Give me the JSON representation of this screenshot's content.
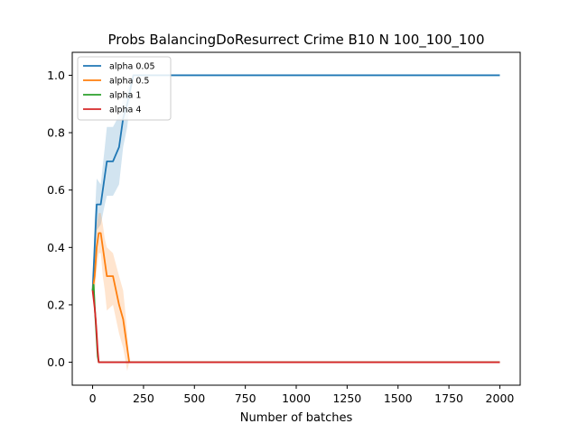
{
  "chart_data": {
    "type": "line",
    "title": "Probs BalancingDoResurrect Crime B10 N 100_100_100",
    "xlabel": "Number of batches",
    "ylabel": "",
    "xlim": [
      -100,
      2100
    ],
    "ylim": [
      -0.08,
      1.08
    ],
    "xticks": [
      0,
      250,
      500,
      750,
      1000,
      1250,
      1500,
      1750,
      2000
    ],
    "yticks": [
      0.0,
      0.2,
      0.4,
      0.6,
      0.8,
      1.0
    ],
    "grid": false,
    "legend_position": "top-left",
    "series": [
      {
        "name": "alpha 0.05",
        "color": "#1f77b4",
        "x": [
          0,
          10,
          20,
          40,
          60,
          70,
          100,
          130,
          150,
          170,
          200,
          250,
          500,
          1000,
          1500,
          2000
        ],
        "y": [
          0.25,
          0.4,
          0.55,
          0.55,
          0.65,
          0.7,
          0.7,
          0.75,
          0.85,
          0.9,
          1.0,
          1.0,
          1.0,
          1.0,
          1.0,
          1.0
        ],
        "band_upper": [
          0.27,
          0.5,
          0.64,
          0.62,
          0.75,
          0.82,
          0.82,
          0.86,
          0.92,
          0.95,
          1.0,
          1.0,
          1.0,
          1.0,
          1.0,
          1.0
        ],
        "band_lower": [
          0.23,
          0.3,
          0.46,
          0.48,
          0.55,
          0.58,
          0.58,
          0.62,
          0.75,
          0.82,
          1.0,
          1.0,
          1.0,
          1.0,
          1.0,
          1.0
        ]
      },
      {
        "name": "alpha 0.5",
        "color": "#ff7f0e",
        "x": [
          0,
          10,
          20,
          30,
          40,
          50,
          60,
          70,
          100,
          130,
          150,
          160,
          170,
          180,
          200,
          500,
          1000,
          1500,
          2000
        ],
        "y": [
          0.25,
          0.3,
          0.4,
          0.45,
          0.45,
          0.4,
          0.35,
          0.3,
          0.3,
          0.2,
          0.15,
          0.1,
          0.05,
          0.0,
          0.0,
          0.0,
          0.0,
          0.0,
          0.0
        ],
        "band_upper": [
          0.27,
          0.36,
          0.48,
          0.52,
          0.52,
          0.48,
          0.43,
          0.4,
          0.38,
          0.3,
          0.25,
          0.18,
          0.1,
          0.0,
          0.0,
          0.0,
          0.0,
          0.0,
          0.0
        ],
        "band_lower": [
          0.23,
          0.24,
          0.32,
          0.38,
          0.38,
          0.3,
          0.25,
          0.18,
          0.2,
          0.1,
          0.05,
          0.01,
          -0.03,
          0.0,
          0.0,
          0.0,
          0.0,
          0.0,
          0.0
        ]
      },
      {
        "name": "alpha 1",
        "color": "#2ca02c",
        "x": [
          0,
          5,
          10,
          15,
          20,
          25,
          30,
          2000
        ],
        "y": [
          0.25,
          0.27,
          0.2,
          0.14,
          0.08,
          0.02,
          0.0,
          0.0
        ]
      },
      {
        "name": "alpha 4",
        "color": "#d62728",
        "x": [
          0,
          5,
          10,
          15,
          20,
          25,
          30,
          2000
        ],
        "y": [
          0.25,
          0.22,
          0.19,
          0.15,
          0.1,
          0.04,
          0.0,
          0.0
        ]
      }
    ]
  }
}
